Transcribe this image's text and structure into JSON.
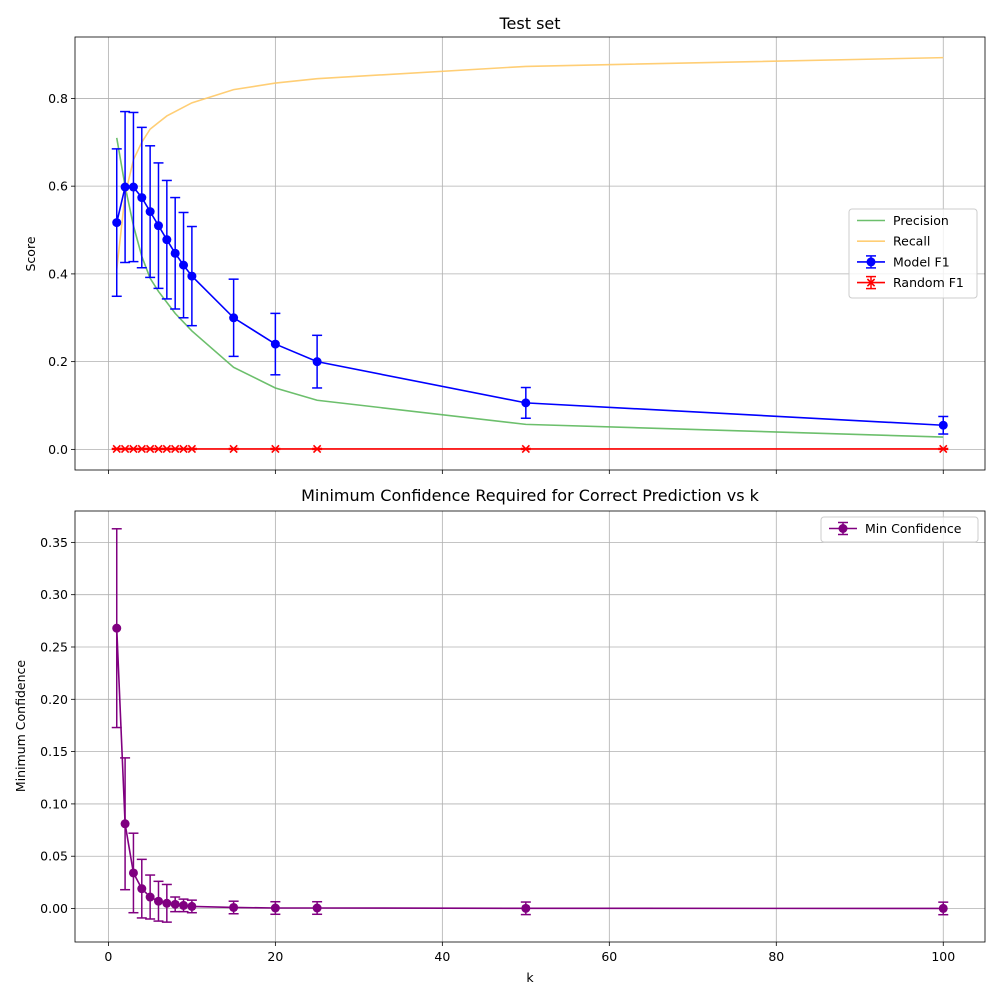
{
  "chart_data": [
    {
      "type": "line",
      "title": "Test set",
      "xlabel": "",
      "ylabel": "Score",
      "xlim": [
        -4,
        105
      ],
      "ylim": [
        -0.047,
        0.94
      ],
      "xticks": [
        0,
        20,
        40,
        60,
        80,
        100
      ],
      "xticklabels_visible": false,
      "yticks": [
        0.0,
        0.2,
        0.4,
        0.6,
        0.8
      ],
      "yticklabels": [
        "0.0",
        "0.2",
        "0.4",
        "0.6",
        "0.8"
      ],
      "grid": true,
      "legend_position": "center-right",
      "x": [
        1,
        2,
        3,
        4,
        5,
        6,
        7,
        8,
        9,
        10,
        15,
        20,
        25,
        50,
        100
      ],
      "series": [
        {
          "name": "Precision",
          "kind": "line",
          "color": "#5cb85c",
          "values": [
            0.71,
            0.6,
            0.51,
            0.44,
            0.39,
            0.36,
            0.335,
            0.31,
            0.29,
            0.27,
            0.187,
            0.14,
            0.112,
            0.057,
            0.028
          ]
        },
        {
          "name": "Recall",
          "kind": "line",
          "color": "#ffc966",
          "values": [
            0.41,
            0.58,
            0.66,
            0.7,
            0.73,
            0.745,
            0.76,
            0.77,
            0.78,
            0.79,
            0.82,
            0.835,
            0.845,
            0.873,
            0.893
          ]
        },
        {
          "name": "Model F1",
          "kind": "errorbar",
          "marker": "circle",
          "color": "#0000ff",
          "values": [
            0.517,
            0.598,
            0.598,
            0.574,
            0.542,
            0.51,
            0.478,
            0.447,
            0.42,
            0.395,
            0.3,
            0.24,
            0.2,
            0.106,
            0.055
          ],
          "errors": [
            0.168,
            0.172,
            0.17,
            0.16,
            0.15,
            0.143,
            0.135,
            0.127,
            0.12,
            0.113,
            0.088,
            0.07,
            0.06,
            0.035,
            0.02
          ]
        },
        {
          "name": "Random F1",
          "kind": "errorbar",
          "marker": "x",
          "color": "#ff0000",
          "values": [
            0.001,
            0.001,
            0.001,
            0.001,
            0.001,
            0.001,
            0.001,
            0.001,
            0.001,
            0.001,
            0.001,
            0.001,
            0.001,
            0.001,
            0.001
          ],
          "errors": [
            0.001,
            0.001,
            0.001,
            0.001,
            0.001,
            0.001,
            0.001,
            0.001,
            0.001,
            0.001,
            0.001,
            0.001,
            0.001,
            0.001,
            0.001
          ]
        }
      ]
    },
    {
      "type": "line",
      "title": "Minimum Confidence Required for Correct Prediction vs k",
      "xlabel": "k",
      "ylabel": "Minimum Confidence",
      "xlim": [
        -4,
        105
      ],
      "ylim": [
        -0.032,
        0.38
      ],
      "xticks": [
        0,
        20,
        40,
        60,
        80,
        100
      ],
      "xticklabels": [
        "0",
        "20",
        "40",
        "60",
        "80",
        "100"
      ],
      "yticks": [
        0.0,
        0.05,
        0.1,
        0.15,
        0.2,
        0.25,
        0.3,
        0.35
      ],
      "yticklabels": [
        "0.00",
        "0.05",
        "0.10",
        "0.15",
        "0.20",
        "0.25",
        "0.30",
        "0.35"
      ],
      "grid": true,
      "legend_position": "top-right",
      "x": [
        1,
        2,
        3,
        4,
        5,
        6,
        7,
        8,
        9,
        10,
        15,
        20,
        25,
        50,
        100
      ],
      "series": [
        {
          "name": "Min Confidence",
          "kind": "errorbar",
          "marker": "circle",
          "color": "#800080",
          "values": [
            0.268,
            0.081,
            0.034,
            0.019,
            0.011,
            0.007,
            0.005,
            0.004,
            0.003,
            0.002,
            0.001,
            0.0005,
            0.0005,
            0.0002,
            0.0001
          ],
          "errors": [
            0.095,
            0.063,
            0.038,
            0.028,
            0.021,
            0.019,
            0.018,
            0.007,
            0.006,
            0.006,
            0.006,
            0.006,
            0.006,
            0.006,
            0.006
          ]
        }
      ]
    }
  ]
}
